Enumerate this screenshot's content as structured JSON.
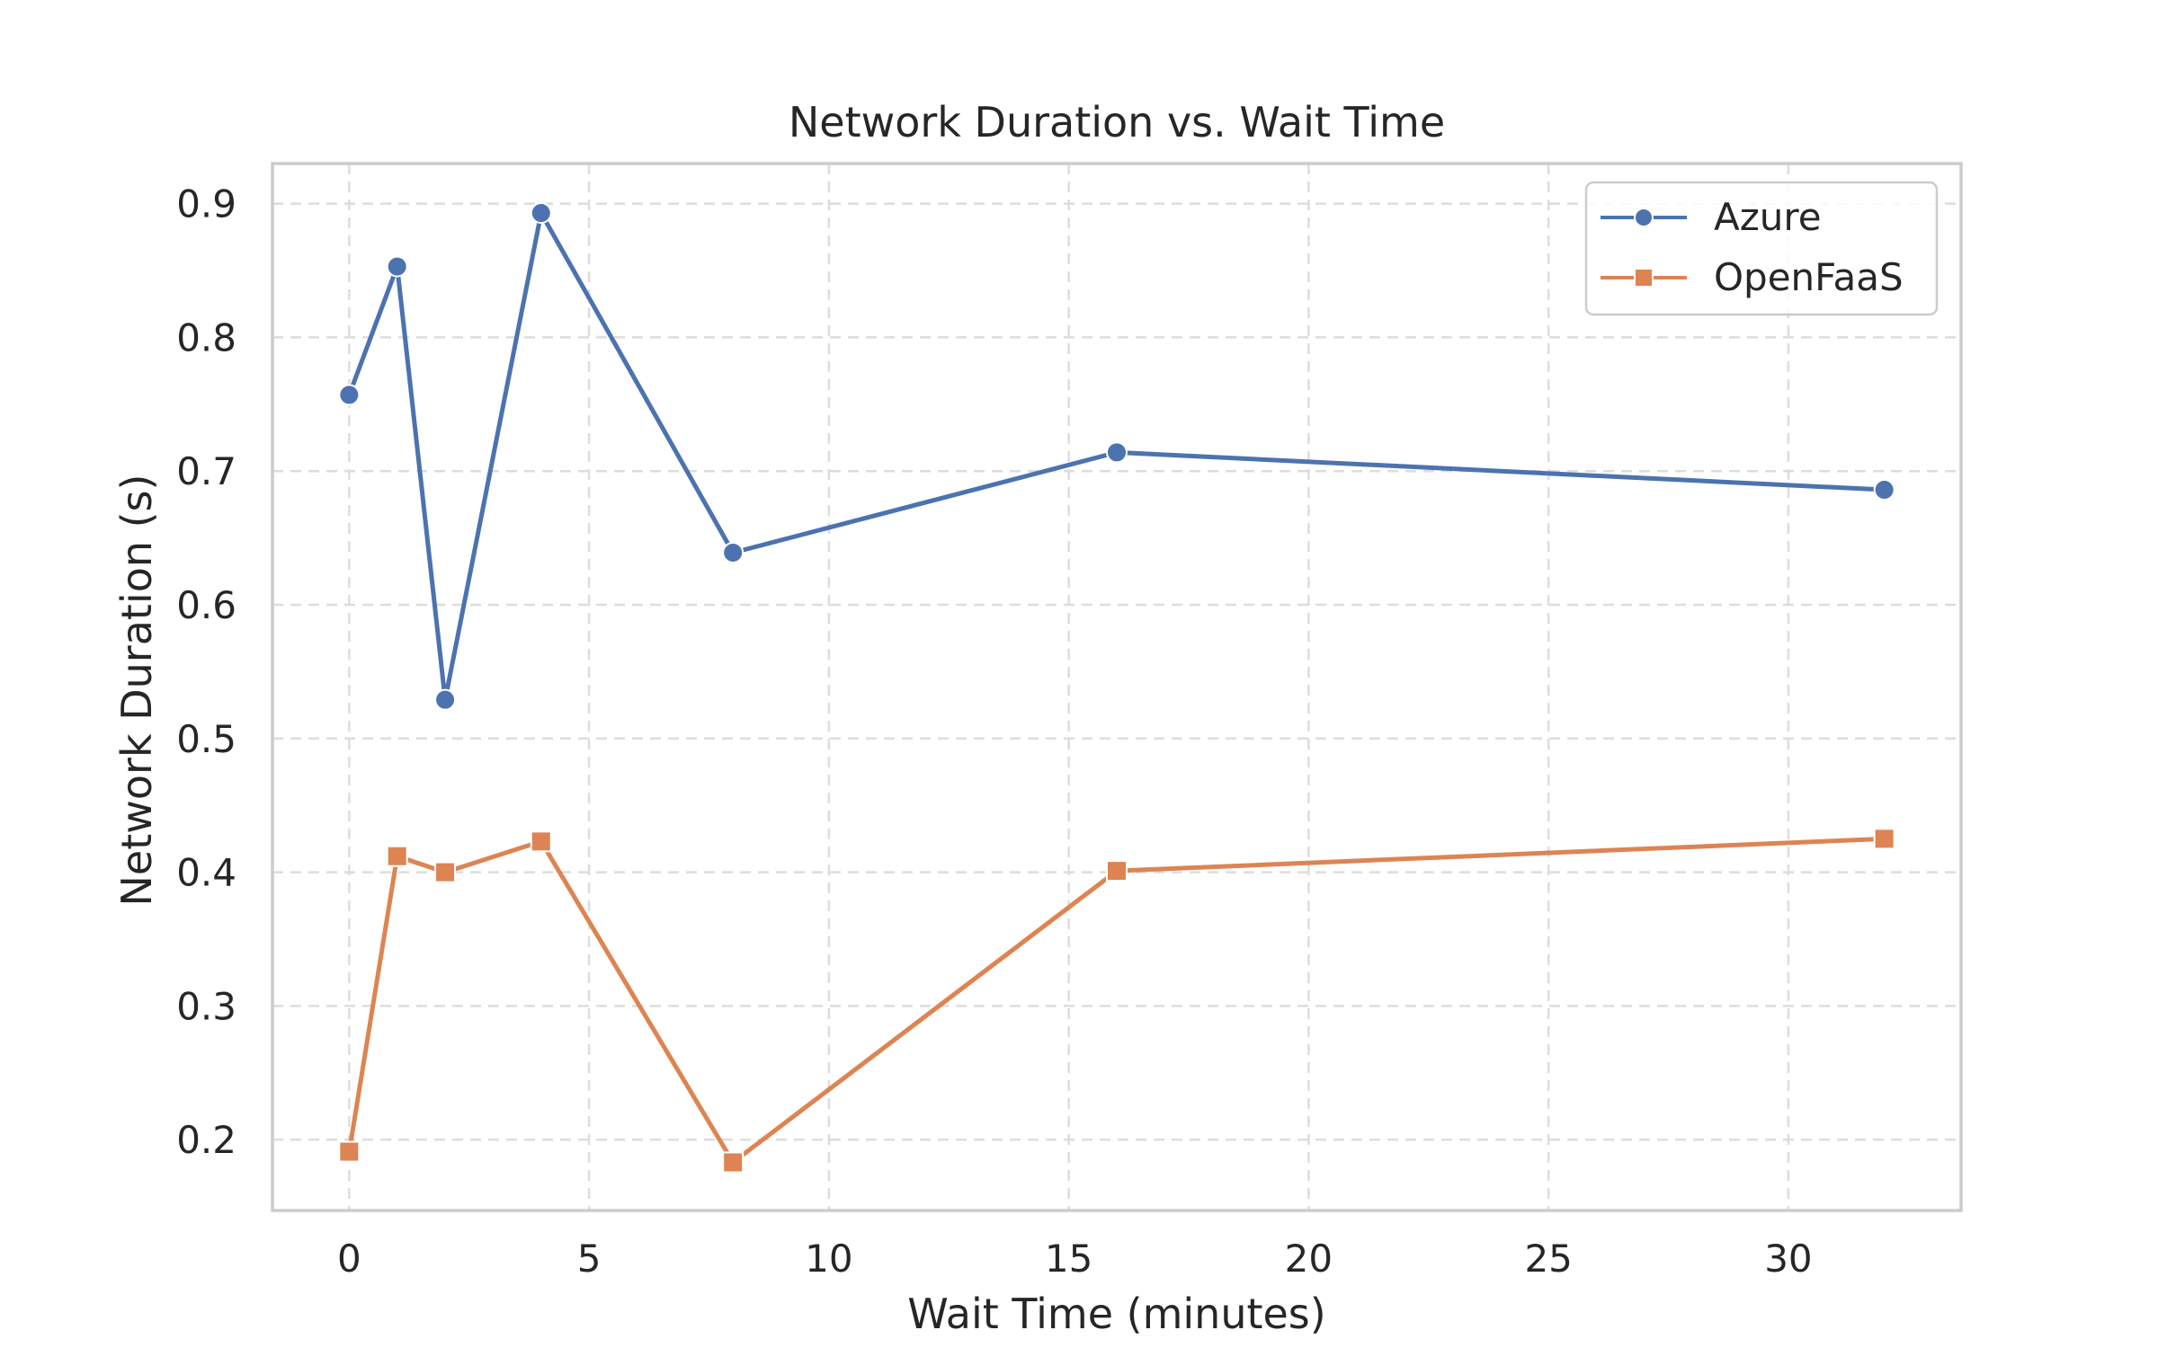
{
  "chart_data": {
    "type": "line",
    "title": "Network Duration vs. Wait Time",
    "xlabel": "Wait Time (minutes)",
    "ylabel": "Network Duration (s)",
    "xlim": [
      -1.6,
      33.6
    ],
    "ylim": [
      0.147,
      0.93
    ],
    "xticks": [
      0,
      5,
      10,
      15,
      20,
      25,
      30
    ],
    "yticks": [
      0.2,
      0.3,
      0.4,
      0.5,
      0.6,
      0.7,
      0.8,
      0.9
    ],
    "grid": true,
    "legend_position": "top-right",
    "x": [
      0,
      1,
      2,
      4,
      8,
      16,
      32
    ],
    "series": [
      {
        "name": "Azure",
        "values": [
          0.757,
          0.853,
          0.529,
          0.893,
          0.639,
          0.714,
          0.686
        ],
        "color": "#4c72b0",
        "marker": "circle"
      },
      {
        "name": "OpenFaaS",
        "values": [
          0.191,
          0.412,
          0.4,
          0.423,
          0.183,
          0.401,
          0.425
        ],
        "color": "#dd8452",
        "marker": "square"
      }
    ]
  }
}
